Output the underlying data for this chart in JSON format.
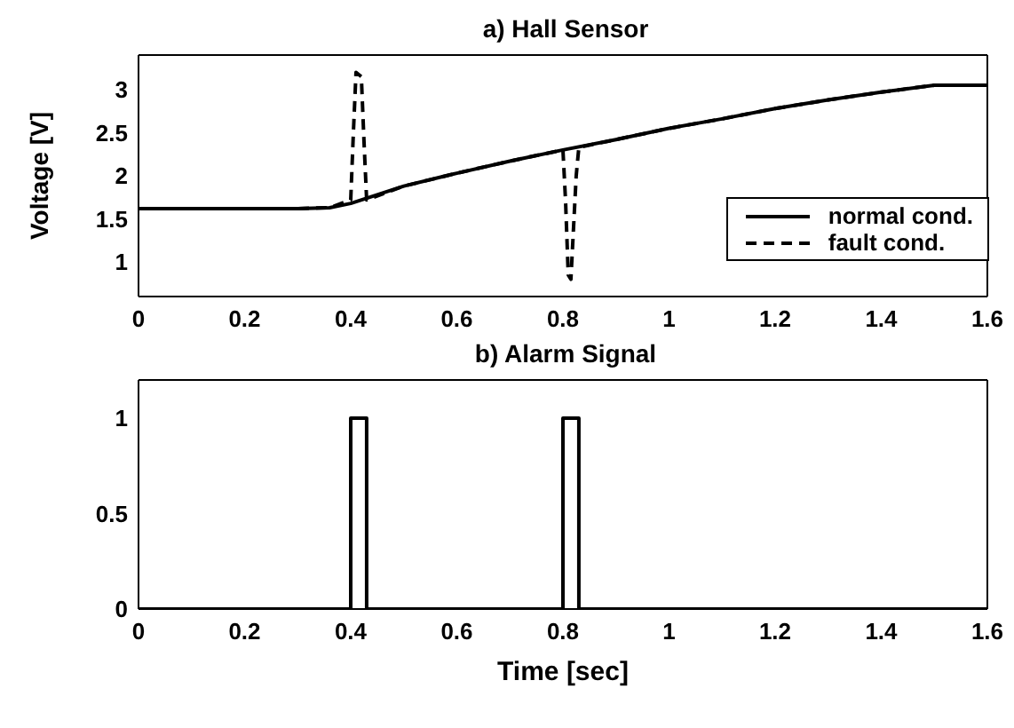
{
  "chart_data": [
    {
      "type": "line",
      "title": "a) Hall Sensor",
      "ylabel": "Voltage [V]",
      "xlim": [
        0,
        1.6
      ],
      "xticks": [
        0,
        0.2,
        0.4,
        0.6,
        0.8,
        1,
        1.2,
        1.4,
        1.6
      ],
      "ylim": [
        0.6,
        3.4
      ],
      "yticks": [
        1,
        1.5,
        2,
        2.5,
        3
      ],
      "grid": false,
      "legend": "bottom right",
      "marker": "none",
      "series": [
        {
          "name": "normal cond.",
          "color": "#000000",
          "line_style": "solid",
          "x": [
            0,
            0.1,
            0.2,
            0.3,
            0.36,
            0.4,
            0.5,
            0.6,
            0.7,
            0.8,
            0.9,
            1.0,
            1.1,
            1.2,
            1.3,
            1.4,
            1.5,
            1.6
          ],
          "values": [
            1.62,
            1.62,
            1.62,
            1.62,
            1.63,
            1.68,
            1.88,
            2.03,
            2.17,
            2.3,
            2.42,
            2.55,
            2.66,
            2.78,
            2.88,
            2.97,
            3.05,
            3.05
          ]
        },
        {
          "name": "fault cond.",
          "color": "#000000",
          "line_style": "dashed",
          "x": [
            0,
            0.1,
            0.2,
            0.3,
            0.36,
            0.4,
            0.405,
            0.41,
            0.42,
            0.425,
            0.43,
            0.5,
            0.6,
            0.7,
            0.8,
            0.805,
            0.81,
            0.815,
            0.82,
            0.825,
            0.83,
            0.9,
            1.0,
            1.1,
            1.2,
            1.3,
            1.4,
            1.5,
            1.6
          ],
          "values": [
            1.62,
            1.62,
            1.62,
            1.62,
            1.63,
            1.72,
            2.5,
            3.2,
            3.15,
            2.4,
            1.72,
            1.88,
            2.03,
            2.17,
            2.3,
            1.7,
            0.85,
            0.8,
            1.4,
            2.0,
            2.33,
            2.42,
            2.55,
            2.66,
            2.78,
            2.88,
            2.97,
            3.05,
            3.05
          ]
        }
      ]
    },
    {
      "type": "line",
      "title": "b) Alarm Signal",
      "xlabel": "Time [sec]",
      "xlim": [
        0,
        1.6
      ],
      "xticks": [
        0,
        0.2,
        0.4,
        0.6,
        0.8,
        1,
        1.2,
        1.4,
        1.6
      ],
      "ylim": [
        0,
        1.2
      ],
      "yticks": [
        0,
        0.5,
        1
      ],
      "grid": false,
      "legend": false,
      "marker": "none",
      "series": [
        {
          "color": "#000000",
          "line_style": "solid",
          "x": [
            0,
            0.4,
            0.4,
            0.43,
            0.43,
            0.8,
            0.8,
            0.83,
            0.83,
            1.6
          ],
          "values": [
            0,
            0,
            1,
            1,
            0,
            0,
            1,
            1,
            0,
            0
          ]
        }
      ]
    }
  ]
}
